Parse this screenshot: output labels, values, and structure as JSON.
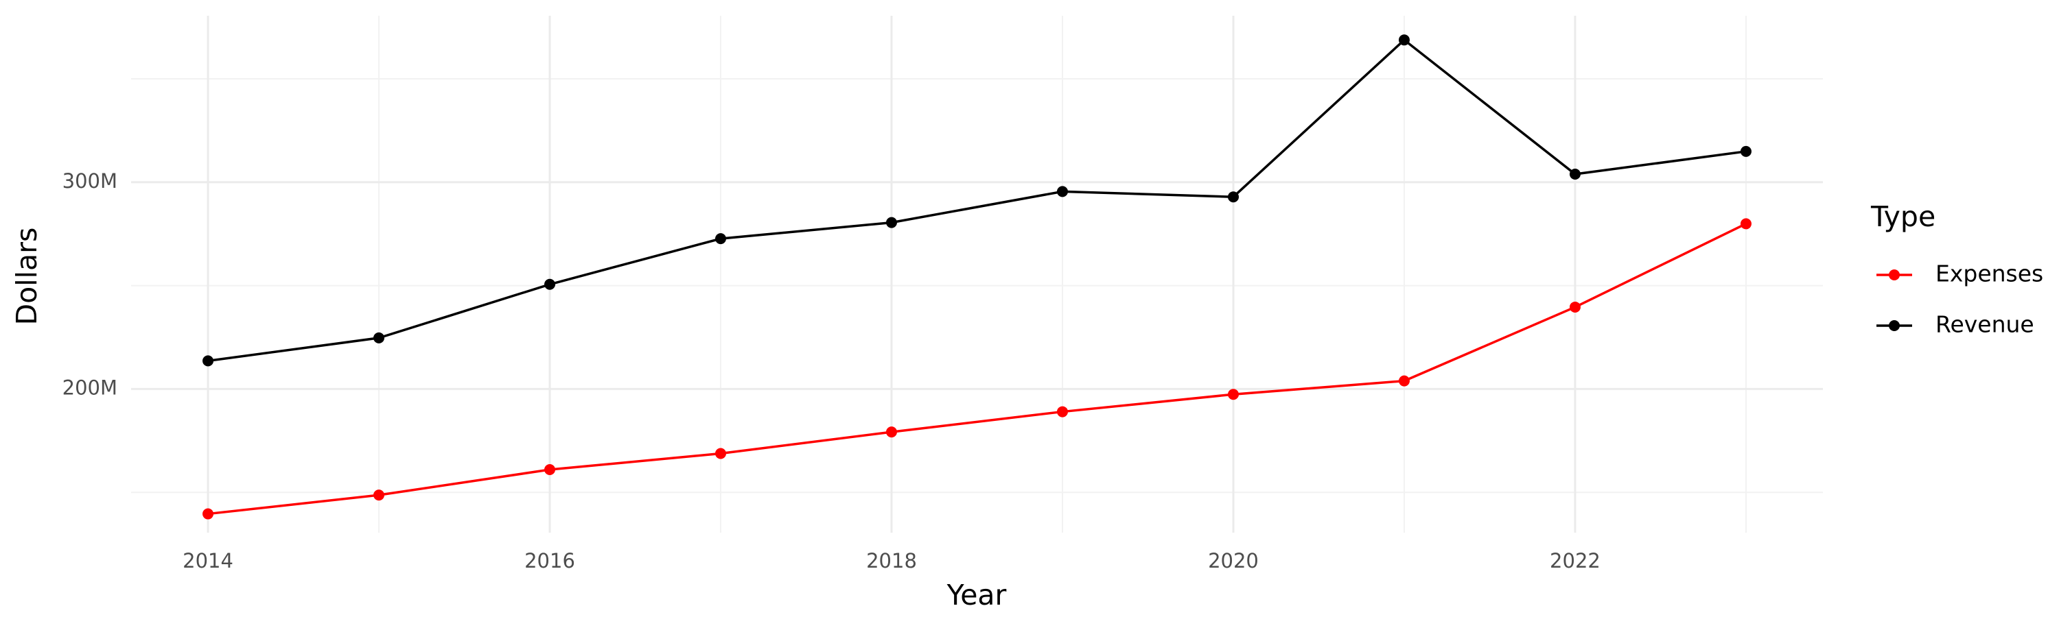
{
  "chart_data": {
    "type": "line",
    "x_label": "Year",
    "y_label": "Dollars",
    "legend_title": "Type",
    "x": [
      2014,
      2015,
      2016,
      2017,
      2018,
      2019,
      2020,
      2021,
      2022,
      2023
    ],
    "series": [
      {
        "name": "Expenses",
        "color": "#ff0000",
        "values": [
          139600000,
          148700000,
          161000000,
          168800000,
          179200000,
          189000000,
          197400000,
          203900000,
          239600000,
          279900000
        ]
      },
      {
        "name": "Revenue",
        "color": "#000000",
        "values": [
          213600000,
          224700000,
          250600000,
          272700000,
          280500000,
          295500000,
          292900000,
          368800000,
          303900000,
          314900000
        ]
      }
    ],
    "xlim": [
      2013.55,
      2023.45
    ],
    "xticks": [
      2014,
      2016,
      2018,
      2020,
      2022
    ],
    "minor_xticks": [
      2015,
      2017,
      2019,
      2021,
      2023
    ],
    "ylim": [
      130500000,
      380500000
    ],
    "yticks": [
      {
        "value": 200000000,
        "label": "200M"
      },
      {
        "value": 300000000,
        "label": "300M"
      }
    ],
    "minor_yticks": [
      150000000,
      250000000,
      350000000
    ],
    "grid": true,
    "legend_position": "right"
  }
}
